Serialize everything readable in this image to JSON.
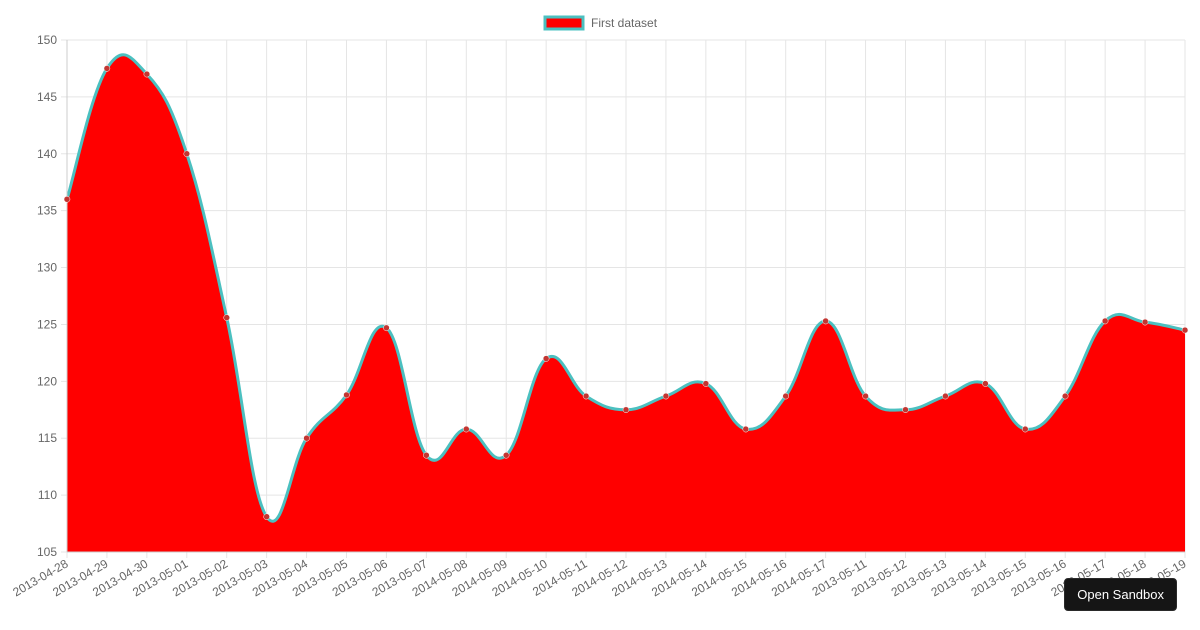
{
  "chart_data": {
    "type": "area",
    "x": [
      "2013-04-28",
      "2013-04-29",
      "2013-04-30",
      "2013-05-01",
      "2013-05-02",
      "2013-05-03",
      "2013-05-04",
      "2013-05-05",
      "2013-05-06",
      "2013-05-07",
      "2014-05-08",
      "2014-05-09",
      "2014-05-10",
      "2014-05-11",
      "2014-05-12",
      "2014-05-13",
      "2014-05-14",
      "2014-05-15",
      "2014-05-16",
      "2014-05-17",
      "2013-05-11",
      "2013-05-12",
      "2013-05-13",
      "2013-05-14",
      "2013-05-15",
      "2013-05-16",
      "2013-05-17",
      "2013-05-18",
      "2013-05-19"
    ],
    "series": [
      {
        "name": "First dataset",
        "values": [
          136,
          147.5,
          147,
          140,
          125.6,
          108.1,
          115,
          118.8,
          124.7,
          113.5,
          115.8,
          113.5,
          122,
          118.7,
          117.5,
          118.7,
          119.8,
          115.8,
          118.7,
          125.3,
          118.7,
          117.5,
          118.7,
          119.8,
          115.8,
          118.7,
          125.3,
          125.2,
          124.5
        ],
        "fill_color": "#ff0000",
        "line_color": "#4bc0c0",
        "point_color": "#c23531"
      }
    ],
    "yticks": [
      "105",
      "110",
      "115",
      "120",
      "125",
      "130",
      "135",
      "140",
      "145",
      "150"
    ],
    "ylim": [
      105,
      150
    ],
    "grid": true,
    "legend_position": "top-center"
  },
  "ui": {
    "sandbox_button_label": "Open Sandbox"
  }
}
